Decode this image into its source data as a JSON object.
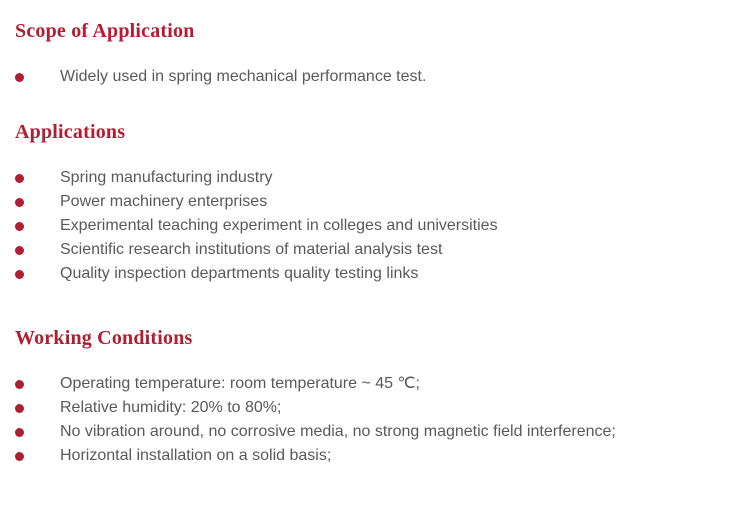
{
  "theme": {
    "accent_color": "#b01e32",
    "body_text_color": "#58595b",
    "background_color": "#ffffff"
  },
  "sections": [
    {
      "title": "Scope of Application",
      "items": [
        "Widely used in spring mechanical performance test."
      ]
    },
    {
      "title": "Applications",
      "items": [
        "Spring manufacturing industry",
        "Power machinery enterprises",
        "Experimental teaching experiment in colleges and universities",
        "Scientific research institutions of material analysis test",
        "Quality inspection departments quality testing links"
      ]
    },
    {
      "title": "Working Conditions",
      "items": [
        "Operating temperature: room temperature ~ 45 ℃;",
        "Relative humidity: 20% to 80%;",
        "No vibration around, no corrosive media, no strong magnetic field interference;",
        "Horizontal installation on a solid basis;"
      ]
    }
  ]
}
